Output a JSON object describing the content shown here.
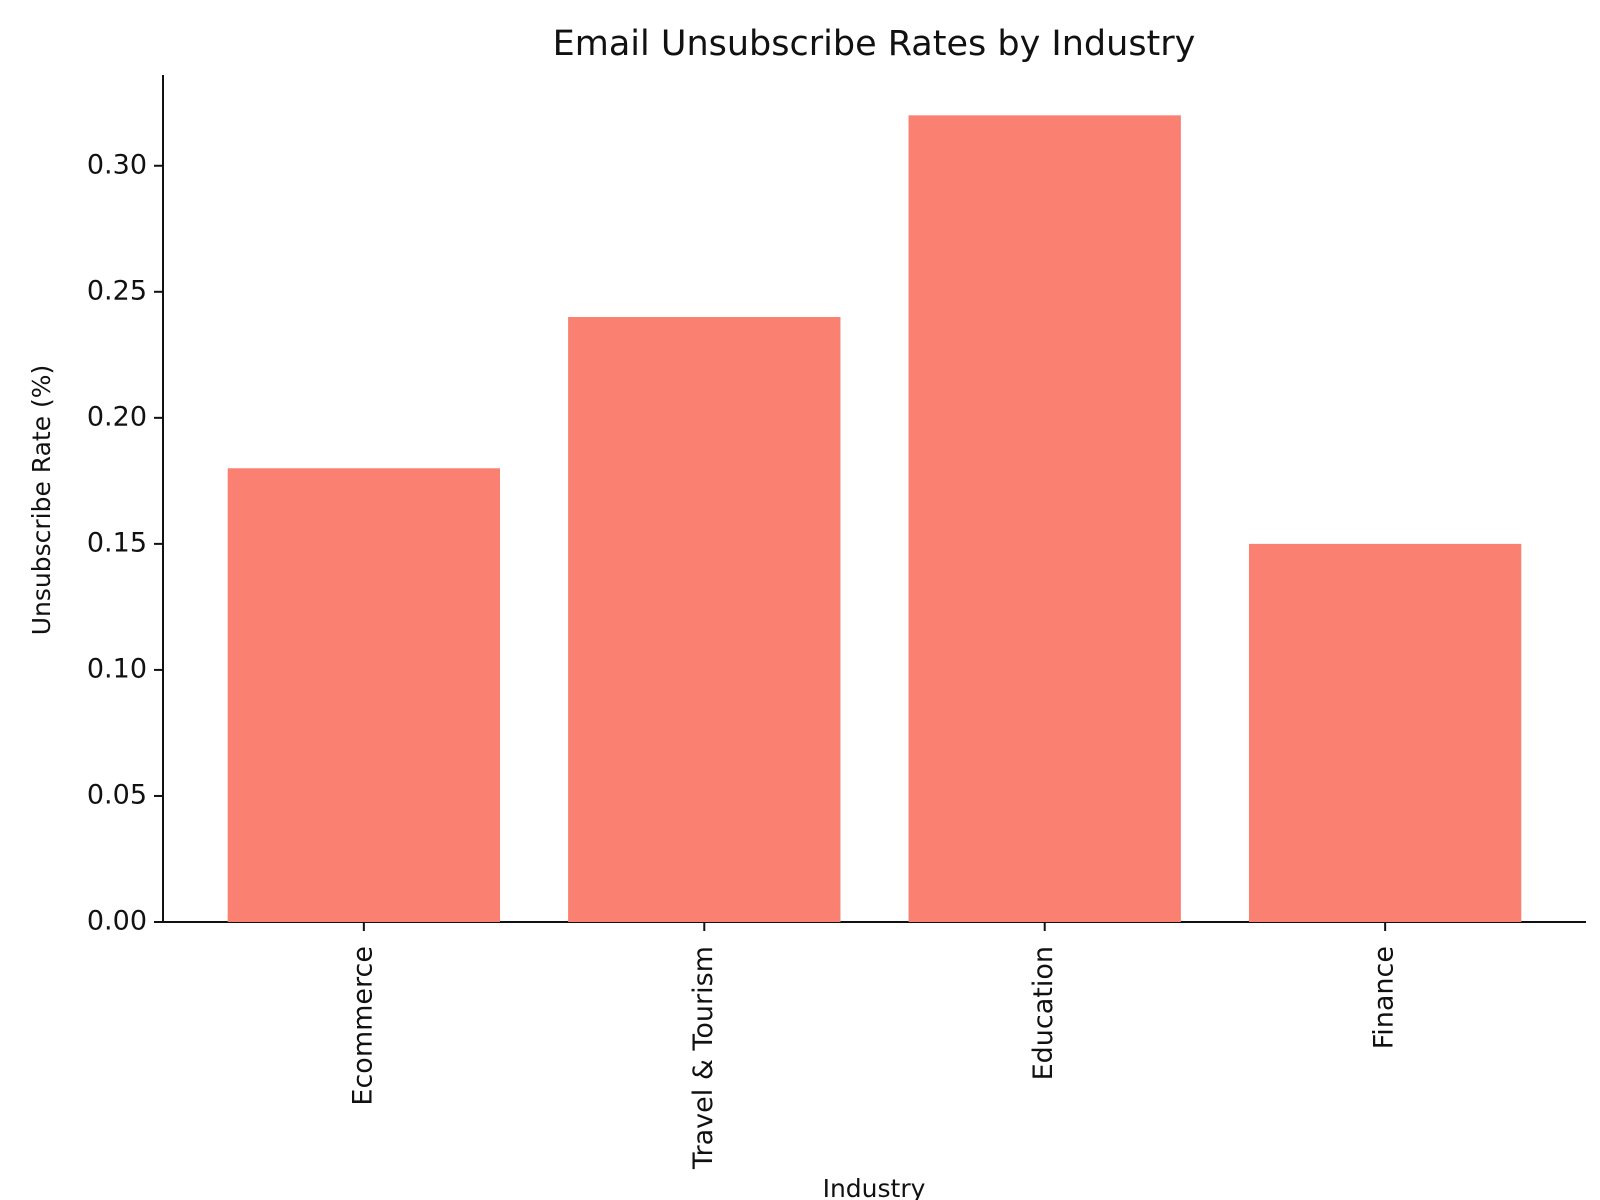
{
  "chart_data": {
    "type": "bar",
    "title": "Email Unsubscribe Rates by Industry",
    "x_label": "Industry",
    "y_label": "Unsubscribe Rate (%)",
    "categories": [
      "Ecommerce",
      "Travel & Tourism",
      "Education",
      "Finance"
    ],
    "values": [
      0.18,
      0.24,
      0.32,
      0.15
    ],
    "color": "#fa8072",
    "ylim": [
      0,
      0.336
    ],
    "yticks": [
      {
        "value": 0,
        "label": "0.00"
      },
      0.05,
      {
        "value": 0.1,
        "label": "0.10"
      },
      0.15,
      {
        "value": 0.2,
        "label": "0.20"
      },
      0.25,
      {
        "value": 0.3,
        "label": "0.30"
      }
    ],
    "grid": false
  }
}
